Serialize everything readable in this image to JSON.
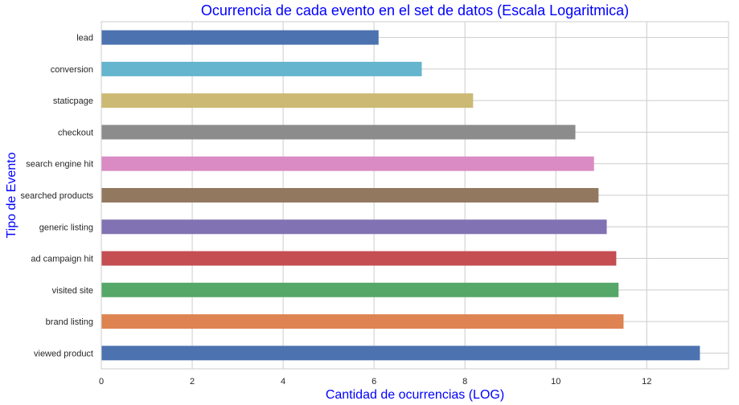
{
  "chart_data": {
    "type": "bar",
    "orientation": "horizontal",
    "title": "Ocurrencia de cada evento en el set de datos (Escala Logaritmica)",
    "xlabel": "Cantidad de ocurrencias (LOG)",
    "ylabel": "Tipo de Evento",
    "xlim": [
      0,
      13.8
    ],
    "xticks": [
      "0",
      "2",
      "4",
      "6",
      "8",
      "10",
      "12"
    ],
    "grid": true,
    "categories": [
      "lead",
      "conversion",
      "staticpage",
      "checkout",
      "search engine hit",
      "searched products",
      "generic listing",
      "ad campaign hit",
      "visited site",
      "brand listing",
      "viewed product"
    ],
    "values": [
      6.1,
      7.05,
      8.18,
      10.43,
      10.84,
      10.94,
      11.12,
      11.33,
      11.38,
      11.49,
      13.17
    ],
    "colors": [
      "#4c72b0",
      "#64b5cd",
      "#ccb974",
      "#8c8c8c",
      "#da8bc3",
      "#937860",
      "#8172b3",
      "#c44e52",
      "#55a868",
      "#dd8452",
      "#4c72b0"
    ]
  }
}
